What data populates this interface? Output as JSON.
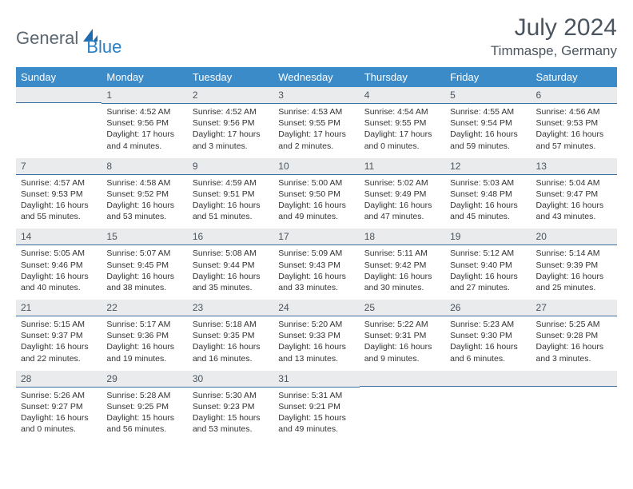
{
  "brand": {
    "part1": "General",
    "part2": "Blue"
  },
  "title": "July 2024",
  "location": "Timmaspe, Germany",
  "colors": {
    "header_bg": "#3b8bc9",
    "header_text": "#ffffff",
    "daynum_bg": "#e9ebec",
    "daynum_border": "#3b6fa0",
    "text": "#333333",
    "title_text": "#4a5560",
    "brand_gray": "#5a6670",
    "brand_blue": "#2a7fc4"
  },
  "day_headers": [
    "Sunday",
    "Monday",
    "Tuesday",
    "Wednesday",
    "Thursday",
    "Friday",
    "Saturday"
  ],
  "weeks": [
    [
      {
        "n": "",
        "l1": "",
        "l2": "",
        "l3": "",
        "l4": ""
      },
      {
        "n": "1",
        "l1": "Sunrise: 4:52 AM",
        "l2": "Sunset: 9:56 PM",
        "l3": "Daylight: 17 hours",
        "l4": "and 4 minutes."
      },
      {
        "n": "2",
        "l1": "Sunrise: 4:52 AM",
        "l2": "Sunset: 9:56 PM",
        "l3": "Daylight: 17 hours",
        "l4": "and 3 minutes."
      },
      {
        "n": "3",
        "l1": "Sunrise: 4:53 AM",
        "l2": "Sunset: 9:55 PM",
        "l3": "Daylight: 17 hours",
        "l4": "and 2 minutes."
      },
      {
        "n": "4",
        "l1": "Sunrise: 4:54 AM",
        "l2": "Sunset: 9:55 PM",
        "l3": "Daylight: 17 hours",
        "l4": "and 0 minutes."
      },
      {
        "n": "5",
        "l1": "Sunrise: 4:55 AM",
        "l2": "Sunset: 9:54 PM",
        "l3": "Daylight: 16 hours",
        "l4": "and 59 minutes."
      },
      {
        "n": "6",
        "l1": "Sunrise: 4:56 AM",
        "l2": "Sunset: 9:53 PM",
        "l3": "Daylight: 16 hours",
        "l4": "and 57 minutes."
      }
    ],
    [
      {
        "n": "7",
        "l1": "Sunrise: 4:57 AM",
        "l2": "Sunset: 9:53 PM",
        "l3": "Daylight: 16 hours",
        "l4": "and 55 minutes."
      },
      {
        "n": "8",
        "l1": "Sunrise: 4:58 AM",
        "l2": "Sunset: 9:52 PM",
        "l3": "Daylight: 16 hours",
        "l4": "and 53 minutes."
      },
      {
        "n": "9",
        "l1": "Sunrise: 4:59 AM",
        "l2": "Sunset: 9:51 PM",
        "l3": "Daylight: 16 hours",
        "l4": "and 51 minutes."
      },
      {
        "n": "10",
        "l1": "Sunrise: 5:00 AM",
        "l2": "Sunset: 9:50 PM",
        "l3": "Daylight: 16 hours",
        "l4": "and 49 minutes."
      },
      {
        "n": "11",
        "l1": "Sunrise: 5:02 AM",
        "l2": "Sunset: 9:49 PM",
        "l3": "Daylight: 16 hours",
        "l4": "and 47 minutes."
      },
      {
        "n": "12",
        "l1": "Sunrise: 5:03 AM",
        "l2": "Sunset: 9:48 PM",
        "l3": "Daylight: 16 hours",
        "l4": "and 45 minutes."
      },
      {
        "n": "13",
        "l1": "Sunrise: 5:04 AM",
        "l2": "Sunset: 9:47 PM",
        "l3": "Daylight: 16 hours",
        "l4": "and 43 minutes."
      }
    ],
    [
      {
        "n": "14",
        "l1": "Sunrise: 5:05 AM",
        "l2": "Sunset: 9:46 PM",
        "l3": "Daylight: 16 hours",
        "l4": "and 40 minutes."
      },
      {
        "n": "15",
        "l1": "Sunrise: 5:07 AM",
        "l2": "Sunset: 9:45 PM",
        "l3": "Daylight: 16 hours",
        "l4": "and 38 minutes."
      },
      {
        "n": "16",
        "l1": "Sunrise: 5:08 AM",
        "l2": "Sunset: 9:44 PM",
        "l3": "Daylight: 16 hours",
        "l4": "and 35 minutes."
      },
      {
        "n": "17",
        "l1": "Sunrise: 5:09 AM",
        "l2": "Sunset: 9:43 PM",
        "l3": "Daylight: 16 hours",
        "l4": "and 33 minutes."
      },
      {
        "n": "18",
        "l1": "Sunrise: 5:11 AM",
        "l2": "Sunset: 9:42 PM",
        "l3": "Daylight: 16 hours",
        "l4": "and 30 minutes."
      },
      {
        "n": "19",
        "l1": "Sunrise: 5:12 AM",
        "l2": "Sunset: 9:40 PM",
        "l3": "Daylight: 16 hours",
        "l4": "and 27 minutes."
      },
      {
        "n": "20",
        "l1": "Sunrise: 5:14 AM",
        "l2": "Sunset: 9:39 PM",
        "l3": "Daylight: 16 hours",
        "l4": "and 25 minutes."
      }
    ],
    [
      {
        "n": "21",
        "l1": "Sunrise: 5:15 AM",
        "l2": "Sunset: 9:37 PM",
        "l3": "Daylight: 16 hours",
        "l4": "and 22 minutes."
      },
      {
        "n": "22",
        "l1": "Sunrise: 5:17 AM",
        "l2": "Sunset: 9:36 PM",
        "l3": "Daylight: 16 hours",
        "l4": "and 19 minutes."
      },
      {
        "n": "23",
        "l1": "Sunrise: 5:18 AM",
        "l2": "Sunset: 9:35 PM",
        "l3": "Daylight: 16 hours",
        "l4": "and 16 minutes."
      },
      {
        "n": "24",
        "l1": "Sunrise: 5:20 AM",
        "l2": "Sunset: 9:33 PM",
        "l3": "Daylight: 16 hours",
        "l4": "and 13 minutes."
      },
      {
        "n": "25",
        "l1": "Sunrise: 5:22 AM",
        "l2": "Sunset: 9:31 PM",
        "l3": "Daylight: 16 hours",
        "l4": "and 9 minutes."
      },
      {
        "n": "26",
        "l1": "Sunrise: 5:23 AM",
        "l2": "Sunset: 9:30 PM",
        "l3": "Daylight: 16 hours",
        "l4": "and 6 minutes."
      },
      {
        "n": "27",
        "l1": "Sunrise: 5:25 AM",
        "l2": "Sunset: 9:28 PM",
        "l3": "Daylight: 16 hours",
        "l4": "and 3 minutes."
      }
    ],
    [
      {
        "n": "28",
        "l1": "Sunrise: 5:26 AM",
        "l2": "Sunset: 9:27 PM",
        "l3": "Daylight: 16 hours",
        "l4": "and 0 minutes."
      },
      {
        "n": "29",
        "l1": "Sunrise: 5:28 AM",
        "l2": "Sunset: 9:25 PM",
        "l3": "Daylight: 15 hours",
        "l4": "and 56 minutes."
      },
      {
        "n": "30",
        "l1": "Sunrise: 5:30 AM",
        "l2": "Sunset: 9:23 PM",
        "l3": "Daylight: 15 hours",
        "l4": "and 53 minutes."
      },
      {
        "n": "31",
        "l1": "Sunrise: 5:31 AM",
        "l2": "Sunset: 9:21 PM",
        "l3": "Daylight: 15 hours",
        "l4": "and 49 minutes."
      },
      {
        "n": "",
        "l1": "",
        "l2": "",
        "l3": "",
        "l4": ""
      },
      {
        "n": "",
        "l1": "",
        "l2": "",
        "l3": "",
        "l4": ""
      },
      {
        "n": "",
        "l1": "",
        "l2": "",
        "l3": "",
        "l4": ""
      }
    ]
  ]
}
